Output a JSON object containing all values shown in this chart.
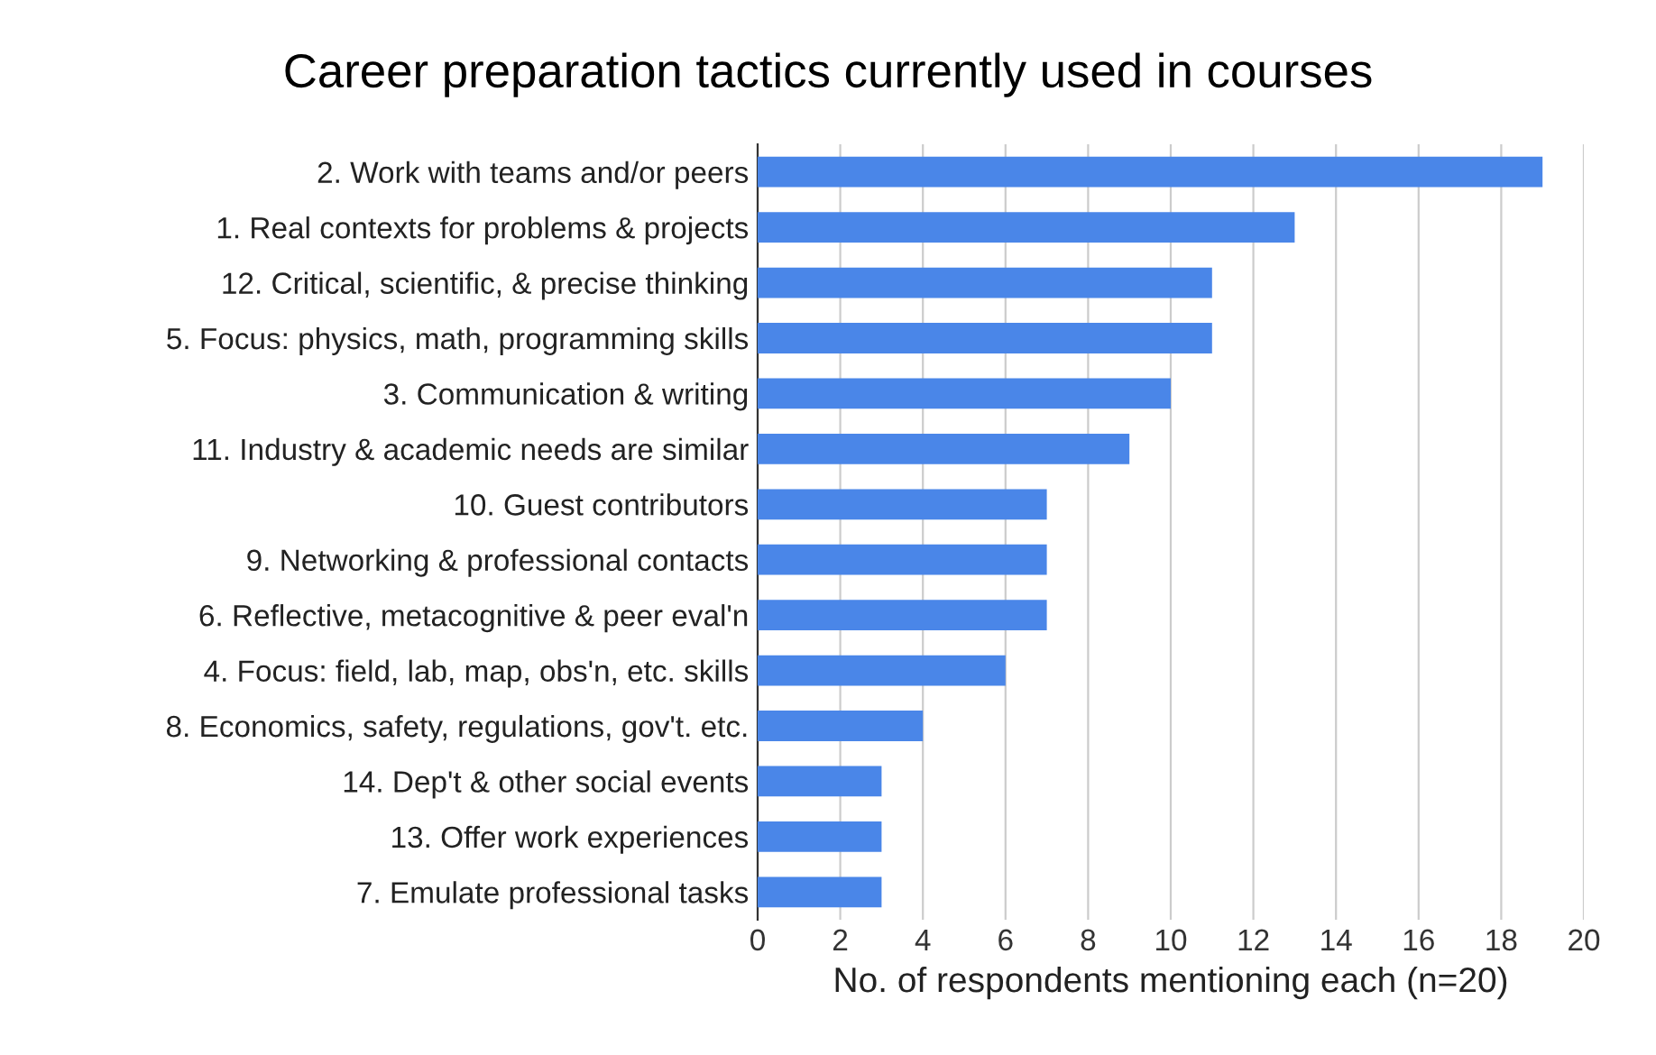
{
  "chart_data": {
    "type": "bar",
    "orientation": "horizontal",
    "title": "Career preparation tactics currently used in courses",
    "xlabel": "No. of respondents mentioning each (n=20)",
    "categories": [
      "2. Work with teams and/or peers",
      "1. Real contexts for problems & projects",
      "12. Critical, scientific, & precise thinking",
      "5. Focus: physics, math, programming skills",
      "3. Communication & writing",
      "11. Industry & academic needs are similar",
      "10. Guest contributors",
      "9. Networking & professional contacts",
      "6. Reflective, metacognitive & peer eval'n",
      "4. Focus: field, lab, map, obs'n, etc. skills",
      "8. Economics, safety, regulations, gov't. etc.",
      "14. Dep't & other social events",
      "13. Offer work experiences",
      "7. Emulate professional tasks"
    ],
    "values": [
      19,
      13,
      11,
      11,
      10,
      9,
      7,
      7,
      7,
      6,
      4,
      3,
      3,
      3
    ],
    "color": "#4a86e8",
    "xlim": [
      0,
      20
    ],
    "xticks": [
      0,
      2,
      4,
      6,
      8,
      10,
      12,
      14,
      16,
      18,
      20
    ],
    "grid": "x",
    "legend": false
  }
}
